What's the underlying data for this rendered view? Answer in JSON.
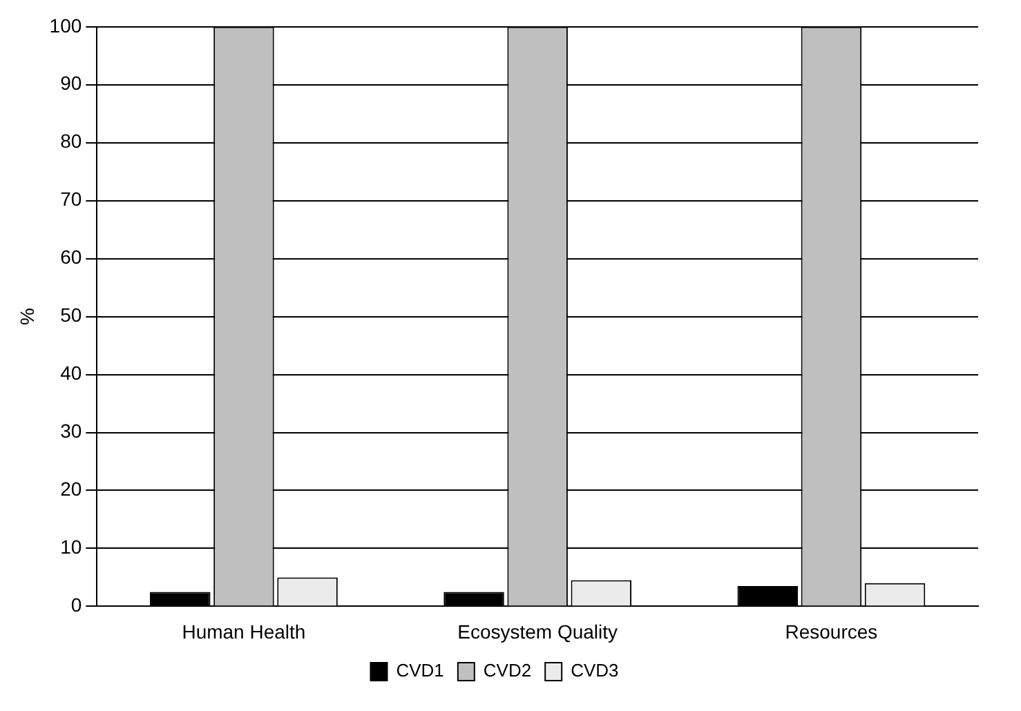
{
  "chart_data": {
    "type": "bar",
    "ylabel": "%",
    "categories": [
      "Human Health",
      "Ecosystem Quality",
      "Resources"
    ],
    "series": [
      {
        "name": "CVD1",
        "color": "#000000",
        "values": [
          2.5,
          2.5,
          3.5
        ]
      },
      {
        "name": "CVD2",
        "color": "#bfbfbf",
        "values": [
          100,
          100,
          100
        ]
      },
      {
        "name": "CVD3",
        "color": "#ebebeb",
        "values": [
          5,
          4.5,
          4
        ]
      }
    ],
    "ylim": [
      0,
      100
    ],
    "yticks": [
      0,
      10,
      20,
      30,
      40,
      50,
      60,
      70,
      80,
      90,
      100
    ],
    "grid": "y",
    "legend": "bottom"
  }
}
